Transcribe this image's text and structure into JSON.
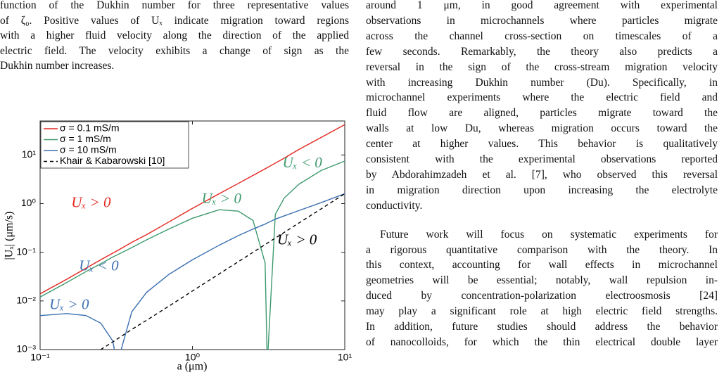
{
  "caption": {
    "lines": [
      "function of the Dukhin number for three representative values",
      "of ζ₀. Positive values of Uₓ indicate migration toward regions",
      "with a higher fluid velocity along the direction of the applied",
      "electric field. The velocity exhibits a change of sign as the",
      "Dukhin number increases."
    ]
  },
  "body": {
    "paragraphs": [
      {
        "lines": [
          "around 1 μm, in good agreement with experimental",
          "observations in microchannels where particles migrate",
          "across the channel cross-section on timescales of a",
          "few seconds. Remarkably, the theory also predicts a",
          "reversal in the sign of the cross-stream migration velocity",
          "with increasing Dukhin number (Du). Specifically, in",
          "microchannel experiments where the electric field and",
          "fluid flow are aligned, particles migrate toward the",
          "walls at low Du, whereas migration occurs toward the",
          "center at higher values. This behavior is qualitatively",
          "consistent with the experimental observations reported",
          "by Abdorahimzadeh et al. [7], who observed this reversal",
          "in migration direction upon increasing the electrolyte",
          "conductivity."
        ]
      },
      {
        "lines": [
          "Future work will focus on systematic experiments for",
          "a rigorous quantitative comparison with the theory. In",
          "this context, accounting for wall effects in microchannel",
          "geometries will be essential; notably, wall repulsion in-",
          "duced by concentration-polarization electroosmosis [24]",
          "may play a significant role at high electric field strengths.",
          "In addition, future studies should address the behavior",
          "of nanocolloids, for which the thin electrical double layer"
        ]
      }
    ]
  },
  "chart_data": {
    "type": "line",
    "xlabel": "a (μm)",
    "ylabel": "|Uₓ| (μm/s)",
    "xscale": "log",
    "yscale": "log",
    "xlim": [
      0.1,
      10
    ],
    "ylim": [
      0.001,
      50
    ],
    "xticks": [
      {
        "value": 0.1,
        "label": "10⁻¹"
      },
      {
        "value": 1,
        "label": "10⁰"
      },
      {
        "value": 10,
        "label": "10¹"
      }
    ],
    "yticks": [
      {
        "value": 0.001,
        "label": "10⁻³"
      },
      {
        "value": 0.01,
        "label": "10⁻²"
      },
      {
        "value": 0.1,
        "label": "10⁻¹"
      },
      {
        "value": 1,
        "label": "10⁰"
      },
      {
        "value": 10,
        "label": "10¹"
      }
    ],
    "legend": "upper left",
    "x": [
      0.1,
      0.15,
      0.2,
      0.25,
      0.3,
      0.32,
      0.4,
      0.5,
      0.7,
      1,
      1.5,
      2,
      2.5,
      3,
      3.1,
      3.5,
      4,
      5,
      7,
      10
    ],
    "series": [
      {
        "name": "σ = 0.1 mS/m",
        "color": "#e3261f",
        "values": [
          0.014,
          0.028,
          0.047,
          0.07,
          0.096,
          0.107,
          0.16,
          0.23,
          0.42,
          0.8,
          1.6,
          2.6,
          3.8,
          5.2,
          5.5,
          6.8,
          8.6,
          13,
          23,
          42
        ]
      },
      {
        "name": "σ = 1 mS/m",
        "color": "#3e9a6e",
        "values": [
          0.012,
          0.024,
          0.04,
          0.058,
          0.08,
          0.088,
          0.125,
          0.18,
          0.3,
          0.5,
          0.75,
          0.7,
          0.45,
          0.06,
          0.0005,
          0.6,
          1.3,
          2.5,
          4.8,
          7.5
        ]
      },
      {
        "name": "σ = 10 mS/m",
        "color": "#3b6fb0",
        "values": [
          0.005,
          0.0055,
          0.005,
          0.0035,
          0.0015,
          0.0005,
          0.006,
          0.015,
          0.035,
          0.07,
          0.14,
          0.22,
          0.3,
          0.38,
          0.4,
          0.48,
          0.56,
          0.72,
          1.05,
          1.6
        ]
      },
      {
        "name": "Khair & Kabarowski [10]",
        "color": "#000000",
        "dashed": true,
        "values": [
          null,
          null,
          null,
          0.001,
          0.00144,
          0.00164,
          0.0026,
          0.004,
          0.0078,
          0.016,
          0.036,
          0.064,
          0.1,
          0.144,
          0.154,
          0.196,
          0.256,
          0.4,
          0.78,
          1.6
        ]
      }
    ],
    "annotations": [
      {
        "text": "Uₓ > 0",
        "color": "#e3261f"
      },
      {
        "text": "Uₓ > 0",
        "color": "#3e9a6e"
      },
      {
        "text": "Uₓ < 0",
        "color": "#3e9a6e"
      },
      {
        "text": "Uₓ > 0",
        "color": "#000000"
      },
      {
        "text": "Uₓ < 0",
        "color": "#3b6fb0"
      },
      {
        "text": "Uₓ > 0",
        "color": "#3b6fb0"
      }
    ]
  }
}
